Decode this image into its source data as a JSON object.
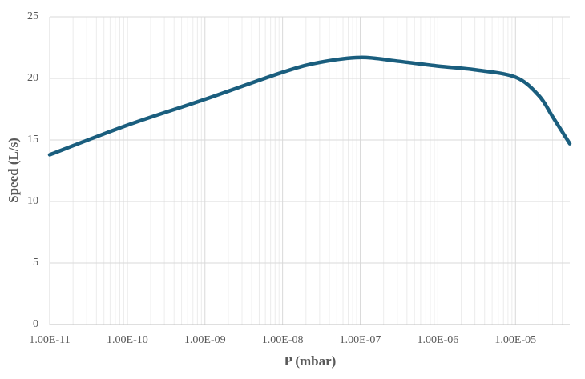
{
  "chart_data": {
    "type": "line",
    "xlabel": "P (mbar)",
    "ylabel": "Speed (L/s)",
    "x": [
      1e-11,
      1e-10,
      1e-09,
      1e-08,
      3e-08,
      1e-07,
      3e-07,
      1e-06,
      3e-06,
      1e-05,
      2e-05,
      3e-05,
      5e-05
    ],
    "values": [
      13.8,
      16.2,
      18.3,
      20.5,
      21.3,
      21.7,
      21.4,
      21.0,
      20.7,
      20.1,
      18.6,
      16.9,
      14.7
    ],
    "color": "#1a5e7e",
    "xscale": "log",
    "grid": true,
    "minor_grid": true,
    "xlim": [
      1e-11,
      5e-05
    ],
    "ylim": [
      0,
      25
    ],
    "xticks": [
      {
        "value": 1e-11,
        "label": "1.00E-11"
      },
      {
        "value": 1e-10,
        "label": "1.00E-10"
      },
      {
        "value": 1e-09,
        "label": "1.00E-09"
      },
      {
        "value": 1e-08,
        "label": "1.00E-08"
      },
      {
        "value": 1e-07,
        "label": "1.00E-07"
      },
      {
        "value": 1e-06,
        "label": "1.00E-06"
      },
      {
        "value": 1e-05,
        "label": "1.00E-05"
      }
    ],
    "yticks": [
      0,
      5,
      10,
      15,
      20,
      25
    ]
  }
}
